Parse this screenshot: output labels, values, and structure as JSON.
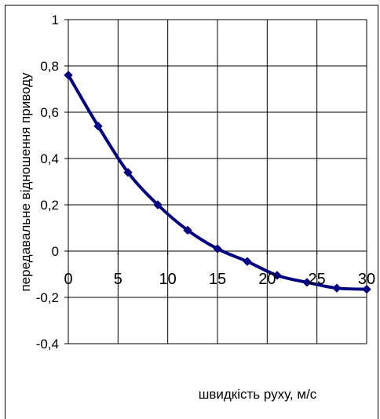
{
  "chart_data": {
    "type": "line",
    "title": "",
    "xlabel": "швидкість руху, м/с",
    "ylabel": "передавальне відношення приводу",
    "xlim": [
      0,
      30
    ],
    "ylim": [
      -0.4,
      1
    ],
    "x_ticks": [
      "0",
      "5",
      "10",
      "15",
      "20",
      "25",
      "30"
    ],
    "y_ticks": [
      "1",
      "0,8",
      "0,6",
      "0,4",
      "0,2",
      "0",
      "-0,2",
      "-0,4"
    ],
    "x_tick_values": [
      0,
      5,
      10,
      15,
      20,
      25,
      30
    ],
    "y_tick_values": [
      1,
      0.8,
      0.6,
      0.4,
      0.2,
      0,
      -0.2,
      -0.4
    ],
    "grid": true,
    "legend": "none",
    "series": [
      {
        "color": "#000080",
        "marker": "diamond",
        "x": [
          0,
          3,
          6,
          9,
          12,
          15,
          18,
          21,
          24,
          27,
          30
        ],
        "y": [
          0.76,
          0.54,
          0.34,
          0.2,
          0.09,
          0.01,
          -0.045,
          -0.105,
          -0.135,
          -0.16,
          -0.165
        ]
      }
    ]
  }
}
